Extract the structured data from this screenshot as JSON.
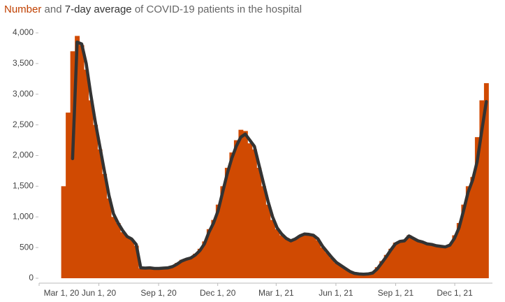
{
  "chart_data": {
    "type": "bar-line",
    "title_connector": "and",
    "title": "of COVID-19 patients in the hospital",
    "x": [
      "2020-04-04",
      "2020-04-11",
      "2020-04-18",
      "2020-04-25",
      "2020-05-02",
      "2020-05-09",
      "2020-05-16",
      "2020-05-23",
      "2020-05-30",
      "2020-06-06",
      "2020-06-13",
      "2020-06-20",
      "2020-06-27",
      "2020-07-04",
      "2020-07-11",
      "2020-07-18",
      "2020-07-25",
      "2020-08-01",
      "2020-08-08",
      "2020-08-15",
      "2020-08-22",
      "2020-08-29",
      "2020-09-05",
      "2020-09-12",
      "2020-09-19",
      "2020-09-26",
      "2020-10-03",
      "2020-10-10",
      "2020-10-17",
      "2020-10-24",
      "2020-10-31",
      "2020-11-07",
      "2020-11-14",
      "2020-11-21",
      "2020-11-28",
      "2020-12-05",
      "2020-12-12",
      "2020-12-19",
      "2020-12-26",
      "2021-01-02",
      "2021-01-09",
      "2021-01-16",
      "2021-01-23",
      "2021-01-30",
      "2021-02-06",
      "2021-02-13",
      "2021-02-20",
      "2021-02-27",
      "2021-03-06",
      "2021-03-13",
      "2021-03-20",
      "2021-03-27",
      "2021-04-03",
      "2021-04-10",
      "2021-04-17",
      "2021-04-24",
      "2021-05-01",
      "2021-05-08",
      "2021-05-15",
      "2021-05-22",
      "2021-05-29",
      "2021-06-05",
      "2021-06-12",
      "2021-06-19",
      "2021-06-26",
      "2021-07-03",
      "2021-07-10",
      "2021-07-17",
      "2021-07-24",
      "2021-07-31",
      "2021-08-07",
      "2021-08-14",
      "2021-08-21",
      "2021-08-28",
      "2021-09-04",
      "2021-09-11",
      "2021-09-18",
      "2021-09-25",
      "2021-10-02",
      "2021-10-09",
      "2021-10-16",
      "2021-10-23",
      "2021-10-30",
      "2021-11-06",
      "2021-11-13",
      "2021-11-20",
      "2021-11-27",
      "2021-12-04",
      "2021-12-11",
      "2021-12-18",
      "2021-12-25",
      "2022-01-01",
      "2022-01-08",
      "2022-01-15"
    ],
    "series": [
      {
        "name": "Number",
        "color": "#d04a02",
        "values": [
          1500,
          2700,
          3700,
          3950,
          3800,
          3400,
          2900,
          2500,
          2100,
          1700,
          1300,
          1000,
          900,
          750,
          680,
          630,
          530,
          160,
          170,
          180,
          160,
          160,
          170,
          180,
          200,
          250,
          300,
          320,
          340,
          400,
          480,
          600,
          800,
          950,
          1200,
          1500,
          1800,
          2050,
          2250,
          2420,
          2400,
          2200,
          2100,
          1800,
          1500,
          1200,
          950,
          800,
          700,
          650,
          600,
          650,
          700,
          730,
          720,
          700,
          620,
          500,
          420,
          330,
          250,
          200,
          150,
          100,
          80,
          70,
          60,
          70,
          90,
          180,
          280,
          380,
          480,
          580,
          600,
          620,
          700,
          640,
          600,
          580,
          560,
          550,
          530,
          520,
          510,
          550,
          700,
          900,
          1200,
          1500,
          1650,
          2300,
          2900,
          3180
        ]
      },
      {
        "name": "7-day average",
        "color": "#333333",
        "values": [
          null,
          null,
          1950,
          3850,
          3820,
          3500,
          3000,
          2550,
          2150,
          1750,
          1350,
          1050,
          900,
          780,
          680,
          640,
          550,
          170,
          165,
          170,
          160,
          160,
          165,
          170,
          190,
          230,
          280,
          310,
          330,
          380,
          450,
          560,
          750,
          900,
          1100,
          1400,
          1700,
          1950,
          2150,
          2300,
          2350,
          2250,
          2150,
          1850,
          1550,
          1250,
          1000,
          820,
          720,
          650,
          610,
          640,
          690,
          720,
          715,
          700,
          640,
          520,
          430,
          340,
          260,
          210,
          160,
          110,
          80,
          70,
          65,
          70,
          85,
          150,
          250,
          350,
          460,
          560,
          600,
          610,
          690,
          650,
          610,
          590,
          560,
          550,
          530,
          520,
          510,
          540,
          650,
          820,
          1100,
          1400,
          1600,
          1900,
          2400,
          2880
        ]
      }
    ],
    "xlim": [
      "2020-03-01",
      "2022-01-28"
    ],
    "xticks": [
      {
        "value": "2020-03-01",
        "label": "Mar 1, 20"
      },
      {
        "value": "2020-06-01",
        "label": "Jun 1, 20"
      },
      {
        "value": "2020-09-01",
        "label": "Sep 1, 20"
      },
      {
        "value": "2020-12-01",
        "label": "Dec 1, 20"
      },
      {
        "value": "2021-03-01",
        "label": "Mar 1, 21"
      },
      {
        "value": "2021-06-01",
        "label": "Jun 1, 21"
      },
      {
        "value": "2021-09-01",
        "label": "Sep 1, 21"
      },
      {
        "value": "2021-12-01",
        "label": "Dec 1, 21"
      }
    ],
    "ylim": [
      0,
      4000
    ],
    "yticks": [
      0,
      500,
      {
        "value": 1000,
        "label": "1,000"
      },
      {
        "value": 1500,
        "label": "1,500"
      },
      {
        "value": 2000,
        "label": "2,000"
      },
      {
        "value": 2500,
        "label": "2,500"
      },
      {
        "value": 3000,
        "label": "3,000"
      },
      {
        "value": 3500,
        "label": "3,500"
      },
      {
        "value": 4000,
        "label": "4,000"
      }
    ],
    "grid": false
  }
}
